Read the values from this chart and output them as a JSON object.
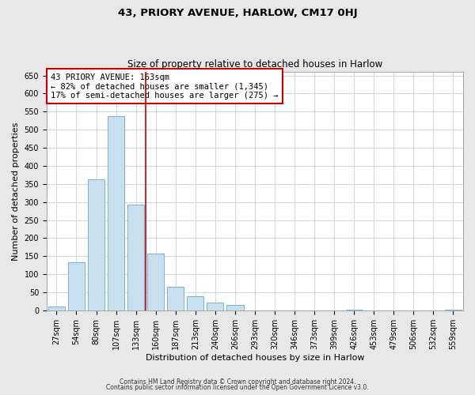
{
  "title": "43, PRIORY AVENUE, HARLOW, CM17 0HJ",
  "subtitle": "Size of property relative to detached houses in Harlow",
  "xlabel": "Distribution of detached houses by size in Harlow",
  "ylabel": "Number of detached properties",
  "bar_labels": [
    "27sqm",
    "54sqm",
    "80sqm",
    "107sqm",
    "133sqm",
    "160sqm",
    "187sqm",
    "213sqm",
    "240sqm",
    "266sqm",
    "293sqm",
    "320sqm",
    "346sqm",
    "373sqm",
    "399sqm",
    "426sqm",
    "453sqm",
    "479sqm",
    "506sqm",
    "532sqm",
    "559sqm"
  ],
  "bar_values": [
    10,
    133,
    363,
    537,
    293,
    158,
    65,
    40,
    22,
    14,
    0,
    0,
    0,
    0,
    0,
    2,
    0,
    0,
    0,
    0,
    2
  ],
  "bar_color": "#c8dff0",
  "bar_edge_color": "#7bafd4",
  "vline_color": "#cc0000",
  "vline_x_index": 5,
  "annotation_title": "43 PRIORY AVENUE: 163sqm",
  "annotation_line1": "← 82% of detached houses are smaller (1,345)",
  "annotation_line2": "17% of semi-detached houses are larger (275) →",
  "annotation_box_color": "#ffffff",
  "annotation_box_edge": "#cc0000",
  "ylim": [
    0,
    660
  ],
  "yticks": [
    0,
    50,
    100,
    150,
    200,
    250,
    300,
    350,
    400,
    450,
    500,
    550,
    600,
    650
  ],
  "footer1": "Contains HM Land Registry data © Crown copyright and database right 2024.",
  "footer2": "Contains public sector information licensed under the Open Government Licence v3.0.",
  "background_color": "#e8e8e8",
  "plot_background": "#ffffff",
  "grid_color": "#c8d0d8",
  "title_fontsize": 9.5,
  "subtitle_fontsize": 8.5,
  "xlabel_fontsize": 8,
  "ylabel_fontsize": 8,
  "tick_fontsize": 7,
  "annotation_fontsize": 7.5,
  "footer_fontsize": 5.5
}
